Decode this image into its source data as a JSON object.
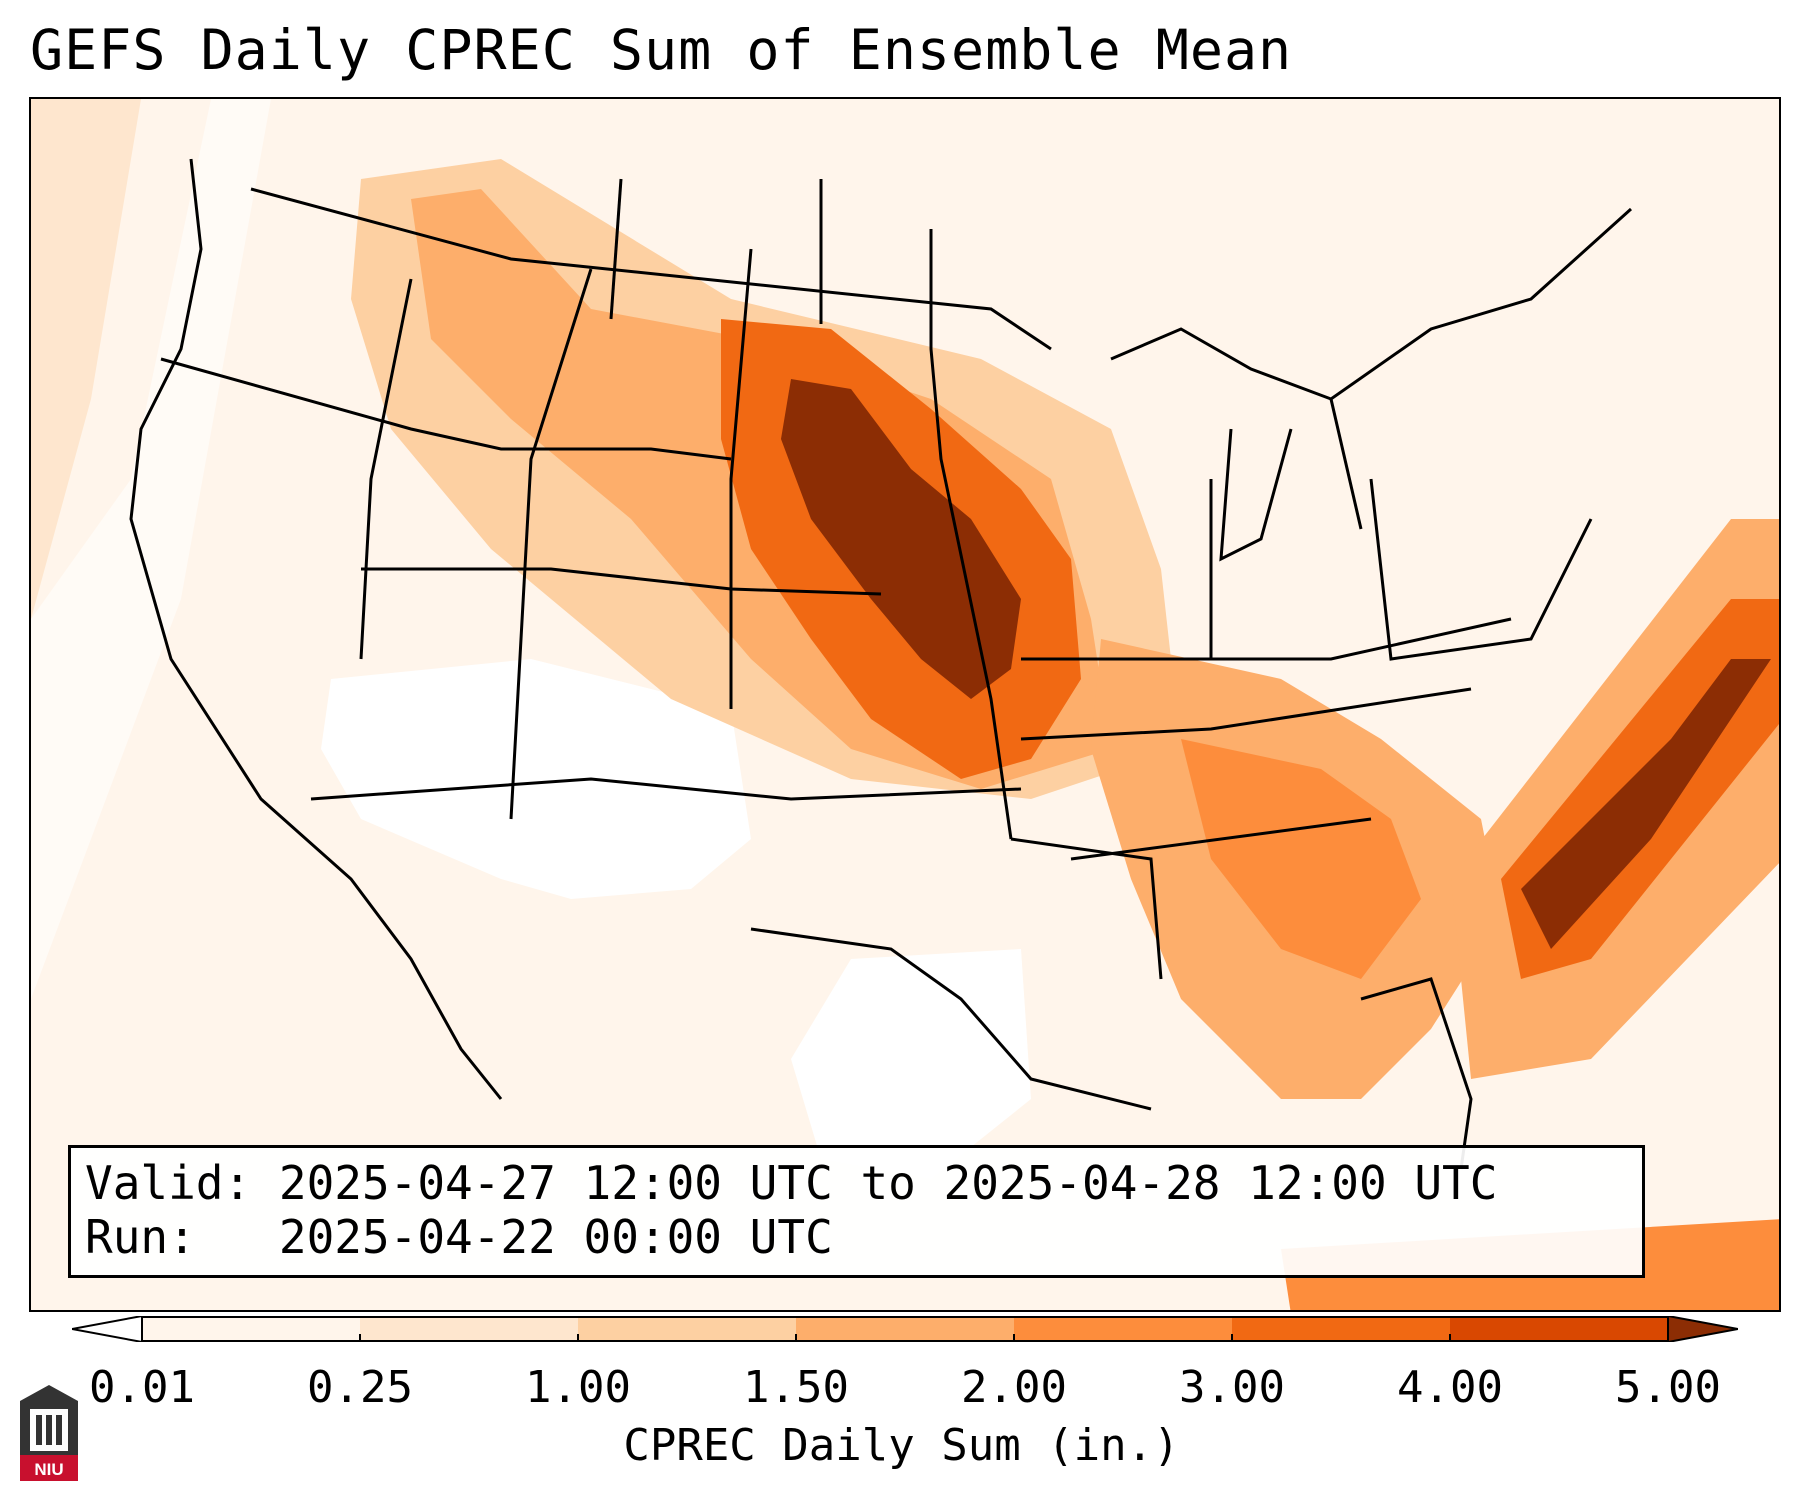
{
  "title": "GEFS Daily CPREC Sum of Ensemble Mean",
  "info": {
    "valid_label": "Valid:",
    "valid_value": "2025-04-27 12:00 UTC to 2025-04-28 12:00 UTC",
    "run_label": "Run:",
    "run_value": "2025-04-22 00:00 UTC"
  },
  "colorbar": {
    "label": "CPREC Daily Sum (in.)",
    "ticks": [
      "0.01",
      "0.25",
      "1.00",
      "1.50",
      "2.00",
      "3.00",
      "4.00",
      "5.00"
    ],
    "colors": [
      "#fff5eb",
      "#fee6ce",
      "#fdd0a2",
      "#fdae6b",
      "#fd8d3c",
      "#f16913",
      "#d94801",
      "#8c2d04"
    ],
    "extend": "both"
  },
  "map": {
    "region": "Continental United States",
    "features": [
      "state boundaries",
      "coastlines",
      "international borders"
    ],
    "precip_colors": {
      "none": "#ffffff",
      "trace": "#fff5eb",
      "light": "#fee6ce",
      "light_moderate": "#fdd0a2",
      "moderate": "#fdae6b",
      "moderate_heavy": "#fd8d3c",
      "heavy": "#e6550d",
      "very_heavy": "#8c2d04"
    }
  },
  "logo": {
    "text": "NIU",
    "color": "#c8102e"
  }
}
